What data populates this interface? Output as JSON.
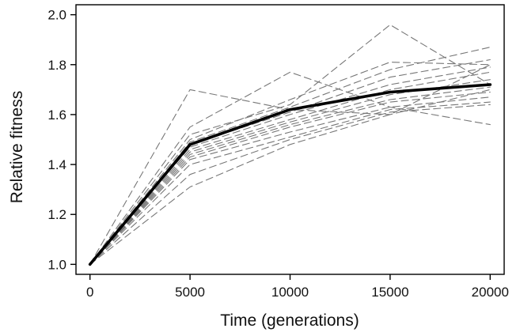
{
  "chart_data": {
    "type": "line",
    "title": "",
    "xlabel": "Time (generations)",
    "ylabel": "Relative fitness",
    "xlim": [
      -700,
      20700
    ],
    "ylim": [
      0.96,
      2.04
    ],
    "xticks": [
      0,
      5000,
      10000,
      15000,
      20000
    ],
    "xtick_labels": [
      "0",
      "5000",
      "10000",
      "15000",
      "20000"
    ],
    "yticks": [
      1.0,
      1.2,
      1.4,
      1.6,
      1.8,
      2.0
    ],
    "ytick_labels": [
      "1.0",
      "1.2",
      "1.4",
      "1.6",
      "1.8",
      "2.0"
    ],
    "grid": false,
    "x": [
      0,
      5000,
      10000,
      15000,
      20000
    ],
    "series": [
      {
        "values": [
          1.0,
          1.7,
          1.62,
          1.6,
          1.7
        ],
        "style": "dashed"
      },
      {
        "values": [
          1.0,
          1.55,
          1.77,
          1.63,
          1.56
        ],
        "style": "dashed"
      },
      {
        "values": [
          1.0,
          1.52,
          1.64,
          1.96,
          1.72
        ],
        "style": "dashed"
      },
      {
        "values": [
          1.0,
          1.5,
          1.66,
          1.81,
          1.8
        ],
        "style": "dashed"
      },
      {
        "values": [
          1.0,
          1.49,
          1.63,
          1.78,
          1.87
        ],
        "style": "dashed"
      },
      {
        "values": [
          1.0,
          1.48,
          1.61,
          1.75,
          1.82
        ],
        "style": "dashed"
      },
      {
        "values": [
          1.0,
          1.47,
          1.6,
          1.72,
          1.79
        ],
        "style": "dashed"
      },
      {
        "values": [
          1.0,
          1.46,
          1.58,
          1.7,
          1.77
        ],
        "style": "dashed"
      },
      {
        "values": [
          1.0,
          1.45,
          1.57,
          1.68,
          1.74
        ],
        "style": "dashed"
      },
      {
        "values": [
          1.0,
          1.44,
          1.56,
          1.66,
          1.71
        ],
        "style": "dashed"
      },
      {
        "values": [
          1.0,
          1.43,
          1.55,
          1.65,
          1.69
        ],
        "style": "dashed"
      },
      {
        "values": [
          1.0,
          1.42,
          1.53,
          1.63,
          1.67
        ],
        "style": "dashed"
      },
      {
        "values": [
          1.0,
          1.4,
          1.51,
          1.62,
          1.65
        ],
        "style": "dashed"
      },
      {
        "values": [
          1.0,
          1.36,
          1.5,
          1.61,
          1.64
        ],
        "style": "dashed"
      },
      {
        "values": [
          1.0,
          1.31,
          1.48,
          1.6,
          1.8
        ],
        "style": "dashed"
      },
      {
        "values": [
          1.0,
          1.48,
          1.62,
          1.69,
          1.72
        ],
        "style": "solid-bold"
      }
    ]
  },
  "colors": {
    "dashed_line": "#777777",
    "mean_line": "#000000",
    "axis": "#000000",
    "text": "#111111"
  }
}
